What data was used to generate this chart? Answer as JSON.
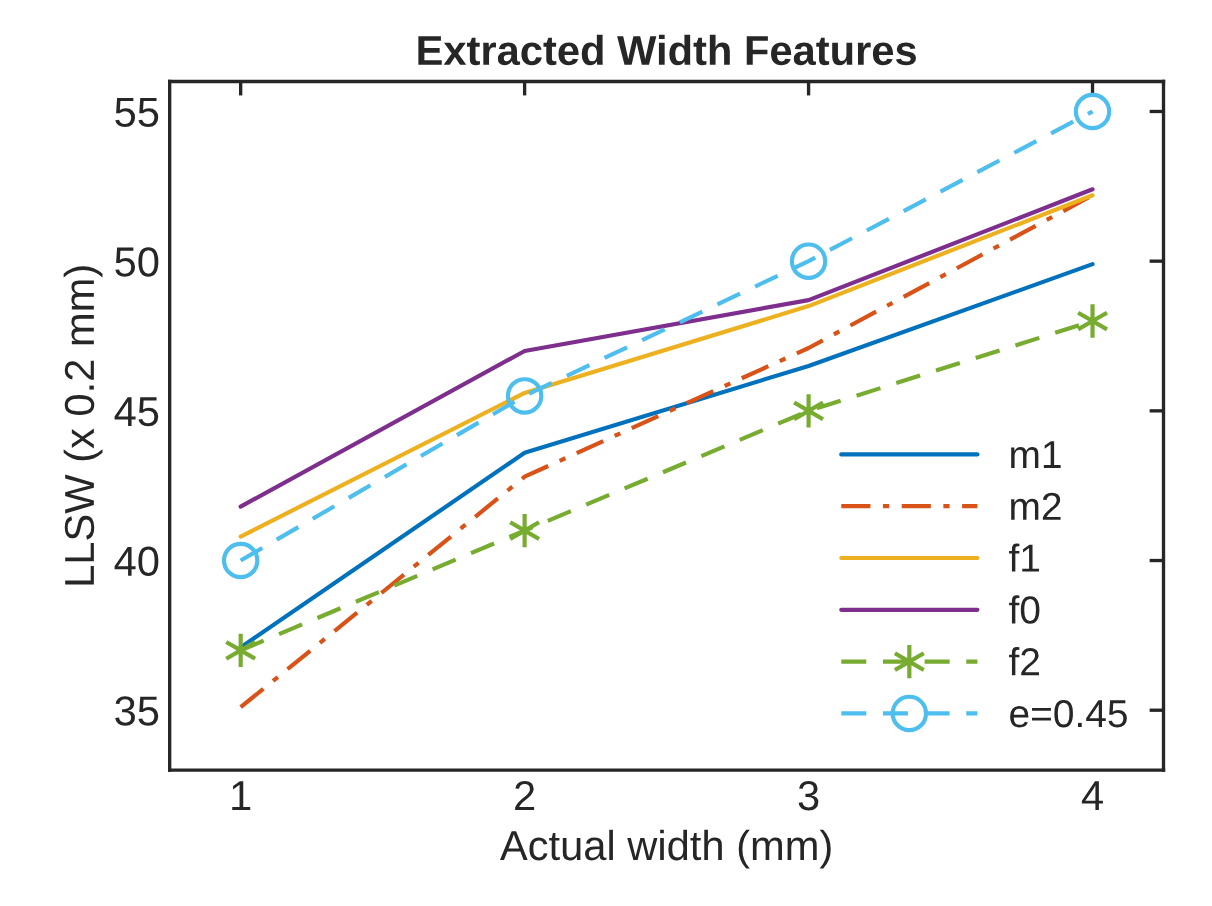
{
  "chart_data": {
    "type": "line",
    "title": "Extracted Width Features",
    "xlabel": "Actual width (mm)",
    "ylabel": "LLSW (x 0.2 mm)",
    "x": [
      1,
      2,
      3,
      4
    ],
    "series": [
      {
        "name": "m1",
        "color": "#0072bd",
        "values": [
          37.1,
          43.6,
          46.5,
          49.9
        ],
        "line_style": "solid",
        "marker": "none"
      },
      {
        "name": "m2",
        "color": "#d95319",
        "values": [
          35.1,
          42.8,
          47.1,
          52.2
        ],
        "line_style": "dashdot",
        "marker": "none"
      },
      {
        "name": "f1",
        "color": "#edb120",
        "values": [
          40.8,
          45.6,
          48.5,
          52.2
        ],
        "line_style": "solid",
        "marker": "none"
      },
      {
        "name": "f0",
        "color": "#7e2f8e",
        "values": [
          41.8,
          47.0,
          48.7,
          52.4
        ],
        "line_style": "solid",
        "marker": "none"
      },
      {
        "name": "f2",
        "color": "#77ac30",
        "values": [
          37,
          41,
          45,
          48
        ],
        "line_style": "dashed",
        "marker": "cross"
      },
      {
        "name": "e=0.45",
        "color": "#4dbeee",
        "values": [
          40,
          45.5,
          50,
          55
        ],
        "line_style": "dashed",
        "marker": "circle"
      }
    ],
    "xlim": [
      0.75,
      4.25
    ],
    "ylim": [
      33,
      56
    ],
    "xticks": [
      1,
      2,
      3,
      4
    ],
    "yticks": [
      35,
      40,
      45,
      50,
      55
    ],
    "grid": false,
    "legend": "bottom right"
  }
}
